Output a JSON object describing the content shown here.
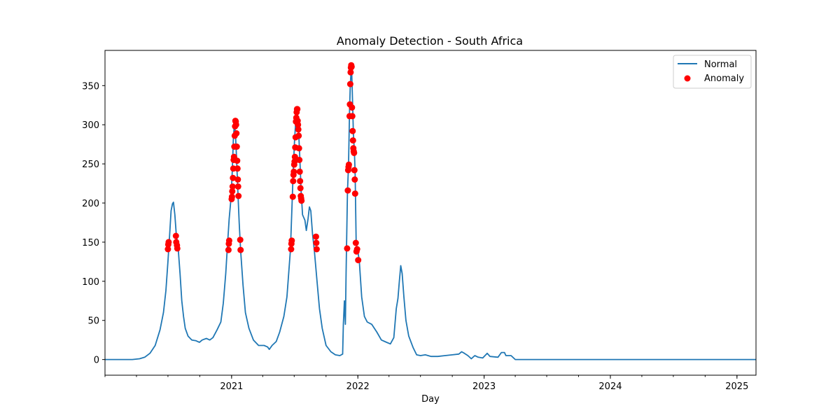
{
  "chart_data": {
    "type": "line",
    "title": "Anomaly Detection - South Africa",
    "xlabel": "Day",
    "ylabel": "",
    "x_range": [
      "2020-01-01",
      "2025-02-25"
    ],
    "ylim": [
      -20,
      395
    ],
    "y_ticks": [
      0,
      50,
      100,
      150,
      200,
      250,
      300,
      350
    ],
    "x_ticks": [
      {
        "label": "2021",
        "date": "2021-01-01"
      },
      {
        "label": "2022",
        "date": "2022-01-01"
      },
      {
        "label": "2023",
        "date": "2023-01-01"
      },
      {
        "label": "2024",
        "date": "2024-01-01"
      },
      {
        "label": "2025",
        "date": "2025-01-01"
      }
    ],
    "grid": false,
    "legend_position": "top-right",
    "series": [
      {
        "name": "Normal",
        "kind": "line",
        "color": "#1f77b4",
        "points": [
          [
            "2020-01-01",
            0
          ],
          [
            "2020-03-01",
            0
          ],
          [
            "2020-03-20",
            0
          ],
          [
            "2020-04-10",
            1
          ],
          [
            "2020-04-25",
            3
          ],
          [
            "2020-05-10",
            8
          ],
          [
            "2020-05-25",
            18
          ],
          [
            "2020-06-08",
            38
          ],
          [
            "2020-06-18",
            60
          ],
          [
            "2020-06-25",
            88
          ],
          [
            "2020-07-01",
            125
          ],
          [
            "2020-07-06",
            160
          ],
          [
            "2020-07-10",
            190
          ],
          [
            "2020-07-14",
            199
          ],
          [
            "2020-07-17",
            201
          ],
          [
            "2020-07-21",
            185
          ],
          [
            "2020-07-25",
            160
          ],
          [
            "2020-07-30",
            145
          ],
          [
            "2020-08-05",
            110
          ],
          [
            "2020-08-10",
            75
          ],
          [
            "2020-08-15",
            55
          ],
          [
            "2020-08-20",
            40
          ],
          [
            "2020-08-28",
            30
          ],
          [
            "2020-09-08",
            25
          ],
          [
            "2020-09-20",
            24
          ],
          [
            "2020-09-30",
            22
          ],
          [
            "2020-10-08",
            25
          ],
          [
            "2020-10-20",
            27
          ],
          [
            "2020-10-30",
            25
          ],
          [
            "2020-11-08",
            28
          ],
          [
            "2020-11-20",
            38
          ],
          [
            "2020-12-01",
            48
          ],
          [
            "2020-12-08",
            72
          ],
          [
            "2020-12-15",
            110
          ],
          [
            "2020-12-20",
            145
          ],
          [
            "2020-12-25",
            180
          ],
          [
            "2020-12-30",
            205
          ],
          [
            "2021-01-03",
            240
          ],
          [
            "2021-01-06",
            280
          ],
          [
            "2021-01-09",
            302
          ],
          [
            "2021-01-12",
            290
          ],
          [
            "2021-01-15",
            260
          ],
          [
            "2021-01-19",
            215
          ],
          [
            "2021-01-23",
            175
          ],
          [
            "2021-01-27",
            140
          ],
          [
            "2021-02-03",
            95
          ],
          [
            "2021-02-10",
            60
          ],
          [
            "2021-02-20",
            40
          ],
          [
            "2021-03-05",
            25
          ],
          [
            "2021-03-20",
            18
          ],
          [
            "2021-04-05",
            18
          ],
          [
            "2021-04-15",
            16
          ],
          [
            "2021-04-20",
            13
          ],
          [
            "2021-04-28",
            18
          ],
          [
            "2021-05-10",
            23
          ],
          [
            "2021-05-20",
            35
          ],
          [
            "2021-06-01",
            55
          ],
          [
            "2021-06-10",
            80
          ],
          [
            "2021-06-15",
            110
          ],
          [
            "2021-06-20",
            140
          ],
          [
            "2021-06-25",
            200
          ],
          [
            "2021-06-28",
            240
          ],
          [
            "2021-07-02",
            280
          ],
          [
            "2021-07-06",
            310
          ],
          [
            "2021-07-09",
            319
          ],
          [
            "2021-07-13",
            300
          ],
          [
            "2021-07-17",
            260
          ],
          [
            "2021-07-21",
            215
          ],
          [
            "2021-07-25",
            185
          ],
          [
            "2021-08-01",
            178
          ],
          [
            "2021-08-05",
            165
          ],
          [
            "2021-08-10",
            180
          ],
          [
            "2021-08-14",
            195
          ],
          [
            "2021-08-18",
            190
          ],
          [
            "2021-08-23",
            160
          ],
          [
            "2021-08-28",
            140
          ],
          [
            "2021-09-05",
            100
          ],
          [
            "2021-09-12",
            65
          ],
          [
            "2021-09-20",
            40
          ],
          [
            "2021-10-01",
            18
          ],
          [
            "2021-10-15",
            10
          ],
          [
            "2021-10-28",
            6
          ],
          [
            "2021-11-10",
            5
          ],
          [
            "2021-11-18",
            7
          ],
          [
            "2021-11-20",
            45
          ],
          [
            "2021-11-23",
            75
          ],
          [
            "2021-11-26",
            45
          ],
          [
            "2021-11-28",
            110
          ],
          [
            "2021-12-02",
            215
          ],
          [
            "2021-12-05",
            248
          ],
          [
            "2021-12-08",
            320
          ],
          [
            "2021-12-10",
            350
          ],
          [
            "2021-12-12",
            365
          ],
          [
            "2021-12-14",
            372
          ],
          [
            "2021-12-17",
            325
          ],
          [
            "2021-12-19",
            290
          ],
          [
            "2021-12-22",
            265
          ],
          [
            "2021-12-24",
            240
          ],
          [
            "2021-12-27",
            150
          ],
          [
            "2022-01-01",
            138
          ],
          [
            "2022-01-05",
            127
          ],
          [
            "2022-01-12",
            80
          ],
          [
            "2022-01-20",
            55
          ],
          [
            "2022-01-28",
            48
          ],
          [
            "2022-02-10",
            45
          ],
          [
            "2022-02-25",
            35
          ],
          [
            "2022-03-10",
            25
          ],
          [
            "2022-03-25",
            22
          ],
          [
            "2022-04-05",
            20
          ],
          [
            "2022-04-15",
            28
          ],
          [
            "2022-04-22",
            65
          ],
          [
            "2022-04-27",
            78
          ],
          [
            "2022-05-01",
            100
          ],
          [
            "2022-05-05",
            120
          ],
          [
            "2022-05-09",
            110
          ],
          [
            "2022-05-14",
            80
          ],
          [
            "2022-05-20",
            50
          ],
          [
            "2022-05-28",
            30
          ],
          [
            "2022-06-10",
            15
          ],
          [
            "2022-06-20",
            6
          ],
          [
            "2022-07-01",
            5
          ],
          [
            "2022-07-15",
            6
          ],
          [
            "2022-08-01",
            4
          ],
          [
            "2022-08-20",
            4
          ],
          [
            "2022-09-10",
            5
          ],
          [
            "2022-10-01",
            6
          ],
          [
            "2022-10-20",
            7
          ],
          [
            "2022-10-28",
            10
          ],
          [
            "2022-11-05",
            8
          ],
          [
            "2022-11-15",
            5
          ],
          [
            "2022-11-25",
            1
          ],
          [
            "2022-12-05",
            5
          ],
          [
            "2022-12-15",
            3
          ],
          [
            "2022-12-28",
            2
          ],
          [
            "2023-01-10",
            8
          ],
          [
            "2023-01-18",
            4
          ],
          [
            "2023-02-10",
            3
          ],
          [
            "2023-02-20",
            9
          ],
          [
            "2023-03-01",
            9
          ],
          [
            "2023-03-05",
            5
          ],
          [
            "2023-03-20",
            5
          ],
          [
            "2023-04-01",
            0
          ],
          [
            "2023-06-01",
            0
          ],
          [
            "2024-01-01",
            0
          ],
          [
            "2025-02-25",
            0
          ]
        ]
      },
      {
        "name": "Anomaly",
        "kind": "scatter",
        "color": "#ff0000",
        "points": [
          [
            "2020-07-01",
            141
          ],
          [
            "2020-07-02",
            147
          ],
          [
            "2020-07-03",
            150
          ],
          [
            "2020-07-24",
            158
          ],
          [
            "2020-07-25",
            150
          ],
          [
            "2020-07-27",
            146
          ],
          [
            "2020-07-28",
            142
          ],
          [
            "2020-12-23",
            140
          ],
          [
            "2020-12-24",
            148
          ],
          [
            "2020-12-25",
            152
          ],
          [
            "2021-01-01",
            205
          ],
          [
            "2021-01-02",
            208
          ],
          [
            "2021-01-03",
            215
          ],
          [
            "2021-01-04",
            221
          ],
          [
            "2021-01-05",
            232
          ],
          [
            "2021-01-06",
            244
          ],
          [
            "2021-01-07",
            255
          ],
          [
            "2021-01-08",
            259
          ],
          [
            "2021-01-09",
            272
          ],
          [
            "2021-01-10",
            286
          ],
          [
            "2021-01-11",
            298
          ],
          [
            "2021-01-12",
            305
          ],
          [
            "2021-01-13",
            304
          ],
          [
            "2021-01-14",
            300
          ],
          [
            "2021-01-15",
            289
          ],
          [
            "2021-01-16",
            272
          ],
          [
            "2021-01-17",
            254
          ],
          [
            "2021-01-18",
            244
          ],
          [
            "2021-01-19",
            230
          ],
          [
            "2021-01-20",
            221
          ],
          [
            "2021-01-21",
            209
          ],
          [
            "2021-01-26",
            153
          ],
          [
            "2021-01-27",
            140
          ],
          [
            "2021-06-22",
            141
          ],
          [
            "2021-06-23",
            148
          ],
          [
            "2021-06-24",
            152
          ],
          [
            "2021-06-27",
            208
          ],
          [
            "2021-06-28",
            228
          ],
          [
            "2021-06-29",
            236
          ],
          [
            "2021-06-30",
            240
          ],
          [
            "2021-07-01",
            249
          ],
          [
            "2021-07-02",
            253
          ],
          [
            "2021-07-03",
            259
          ],
          [
            "2021-07-04",
            271
          ],
          [
            "2021-07-05",
            284
          ],
          [
            "2021-07-06",
            304
          ],
          [
            "2021-07-07",
            309
          ],
          [
            "2021-07-08",
            316
          ],
          [
            "2021-07-09",
            320
          ],
          [
            "2021-07-10",
            320
          ],
          [
            "2021-07-11",
            305
          ],
          [
            "2021-07-12",
            300
          ],
          [
            "2021-07-13",
            294
          ],
          [
            "2021-07-14",
            286
          ],
          [
            "2021-07-15",
            270
          ],
          [
            "2021-07-16",
            255
          ],
          [
            "2021-07-17",
            240
          ],
          [
            "2021-07-18",
            228
          ],
          [
            "2021-07-19",
            219
          ],
          [
            "2021-07-20",
            209
          ],
          [
            "2021-07-21",
            206
          ],
          [
            "2021-07-22",
            203
          ],
          [
            "2021-09-02",
            157
          ],
          [
            "2021-09-03",
            149
          ],
          [
            "2021-09-04",
            141
          ],
          [
            "2021-12-01",
            142
          ],
          [
            "2021-12-03",
            216
          ],
          [
            "2021-12-04",
            242
          ],
          [
            "2021-12-05",
            246
          ],
          [
            "2021-12-06",
            249
          ],
          [
            "2021-12-08",
            311
          ],
          [
            "2021-12-09",
            326
          ],
          [
            "2021-12-10",
            352
          ],
          [
            "2021-12-11",
            367
          ],
          [
            "2021-12-12",
            373
          ],
          [
            "2021-12-13",
            376
          ],
          [
            "2021-12-14",
            374
          ],
          [
            "2021-12-15",
            322
          ],
          [
            "2021-12-16",
            311
          ],
          [
            "2021-12-17",
            292
          ],
          [
            "2021-12-18",
            280
          ],
          [
            "2021-12-19",
            270
          ],
          [
            "2021-12-20",
            266
          ],
          [
            "2021-12-21",
            264
          ],
          [
            "2021-12-22",
            242
          ],
          [
            "2021-12-23",
            230
          ],
          [
            "2021-12-24",
            212
          ],
          [
            "2021-12-26",
            149
          ],
          [
            "2021-12-28",
            138
          ],
          [
            "2021-12-30",
            141
          ],
          [
            "2022-01-02",
            127
          ]
        ]
      }
    ]
  }
}
